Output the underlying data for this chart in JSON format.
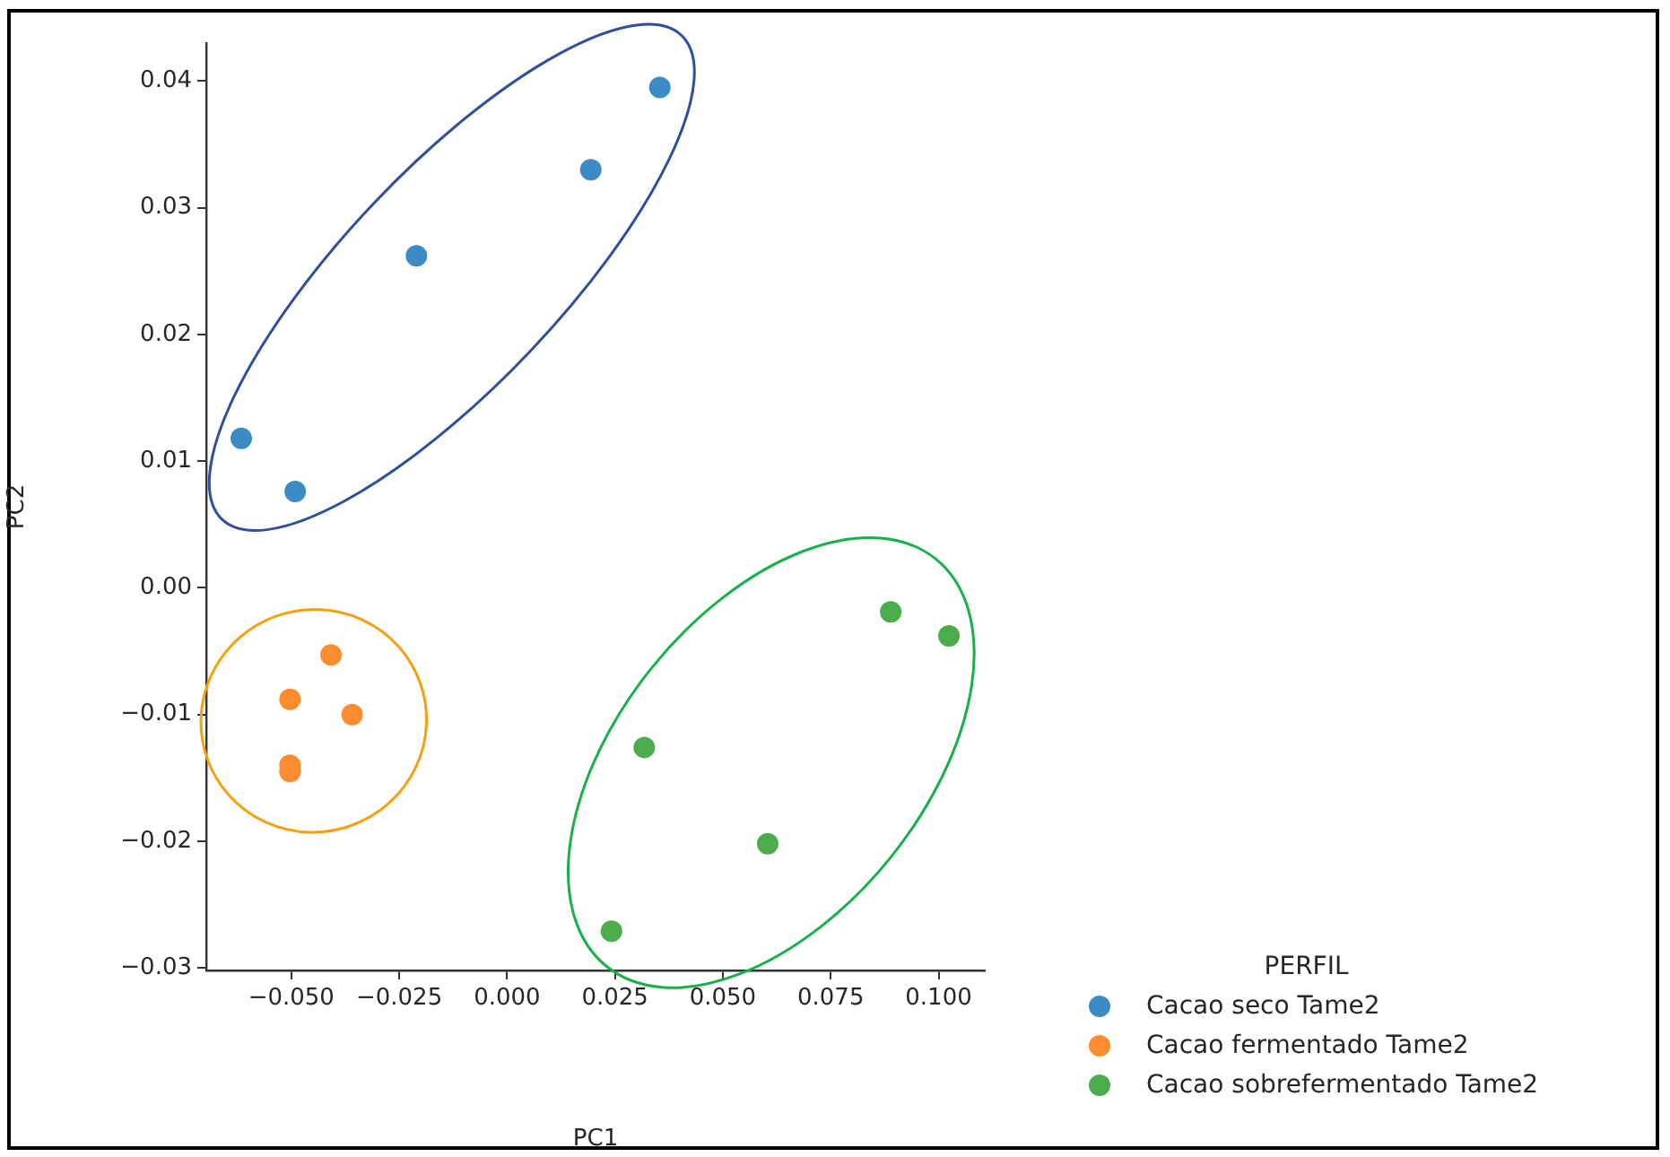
{
  "chart_data": {
    "type": "scatter",
    "xlabel": "PC1",
    "ylabel": "PC2",
    "legend_title": "PERFIL",
    "legend": "bottom right",
    "marker": "circle",
    "grid": false,
    "xlim": [
      -0.0697,
      0.1107
    ],
    "ylim": [
      -0.0302,
      0.043
    ],
    "xticks": [
      {
        "value": -0.05,
        "label": "−0.050"
      },
      {
        "value": -0.025,
        "label": "−0.025"
      },
      {
        "value": 0,
        "label": "0.000"
      },
      {
        "value": 0.025,
        "label": "0.025"
      },
      {
        "value": 0.05,
        "label": "0.050"
      },
      {
        "value": 0.075,
        "label": "0.075"
      },
      {
        "value": 0.1,
        "label": "0.100"
      }
    ],
    "yticks": [
      {
        "value": -0.03,
        "label": "−0.03"
      },
      {
        "value": -0.02,
        "label": "−0.02"
      },
      {
        "value": -0.01,
        "label": "−0.01"
      },
      {
        "value": 0,
        "label": "0.00"
      },
      {
        "value": 0.01,
        "label": "0.01"
      },
      {
        "value": 0.02,
        "label": "0.02"
      },
      {
        "value": 0.03,
        "label": "0.03"
      },
      {
        "value": 0.04,
        "label": "0.04"
      }
    ],
    "series": [
      {
        "name": "Cacao seco Tame2",
        "color": "#3d8bc4",
        "x": [
          -0.0616,
          -0.0491,
          -0.021,
          0.0194,
          0.0354
        ],
        "values": [
          0.0118,
          0.0076,
          0.0262,
          0.033,
          0.0395
        ]
      },
      {
        "name": "Cacao fermentado Tame2",
        "color": "#fd8c2e",
        "x": [
          -0.0408,
          -0.0503,
          -0.0359,
          -0.0503,
          -0.0503
        ],
        "values": [
          -0.0053,
          -0.0088,
          -0.01,
          -0.014,
          -0.0145
        ]
      },
      {
        "name": "Cacao sobrefermentado Tame2",
        "color": "#4aac4a",
        "x": [
          0.0889,
          0.1024,
          0.0318,
          0.0604,
          0.0242
        ],
        "values": [
          -0.0019,
          -0.0038,
          -0.0126,
          -0.0202,
          -0.0271
        ]
      }
    ]
  }
}
